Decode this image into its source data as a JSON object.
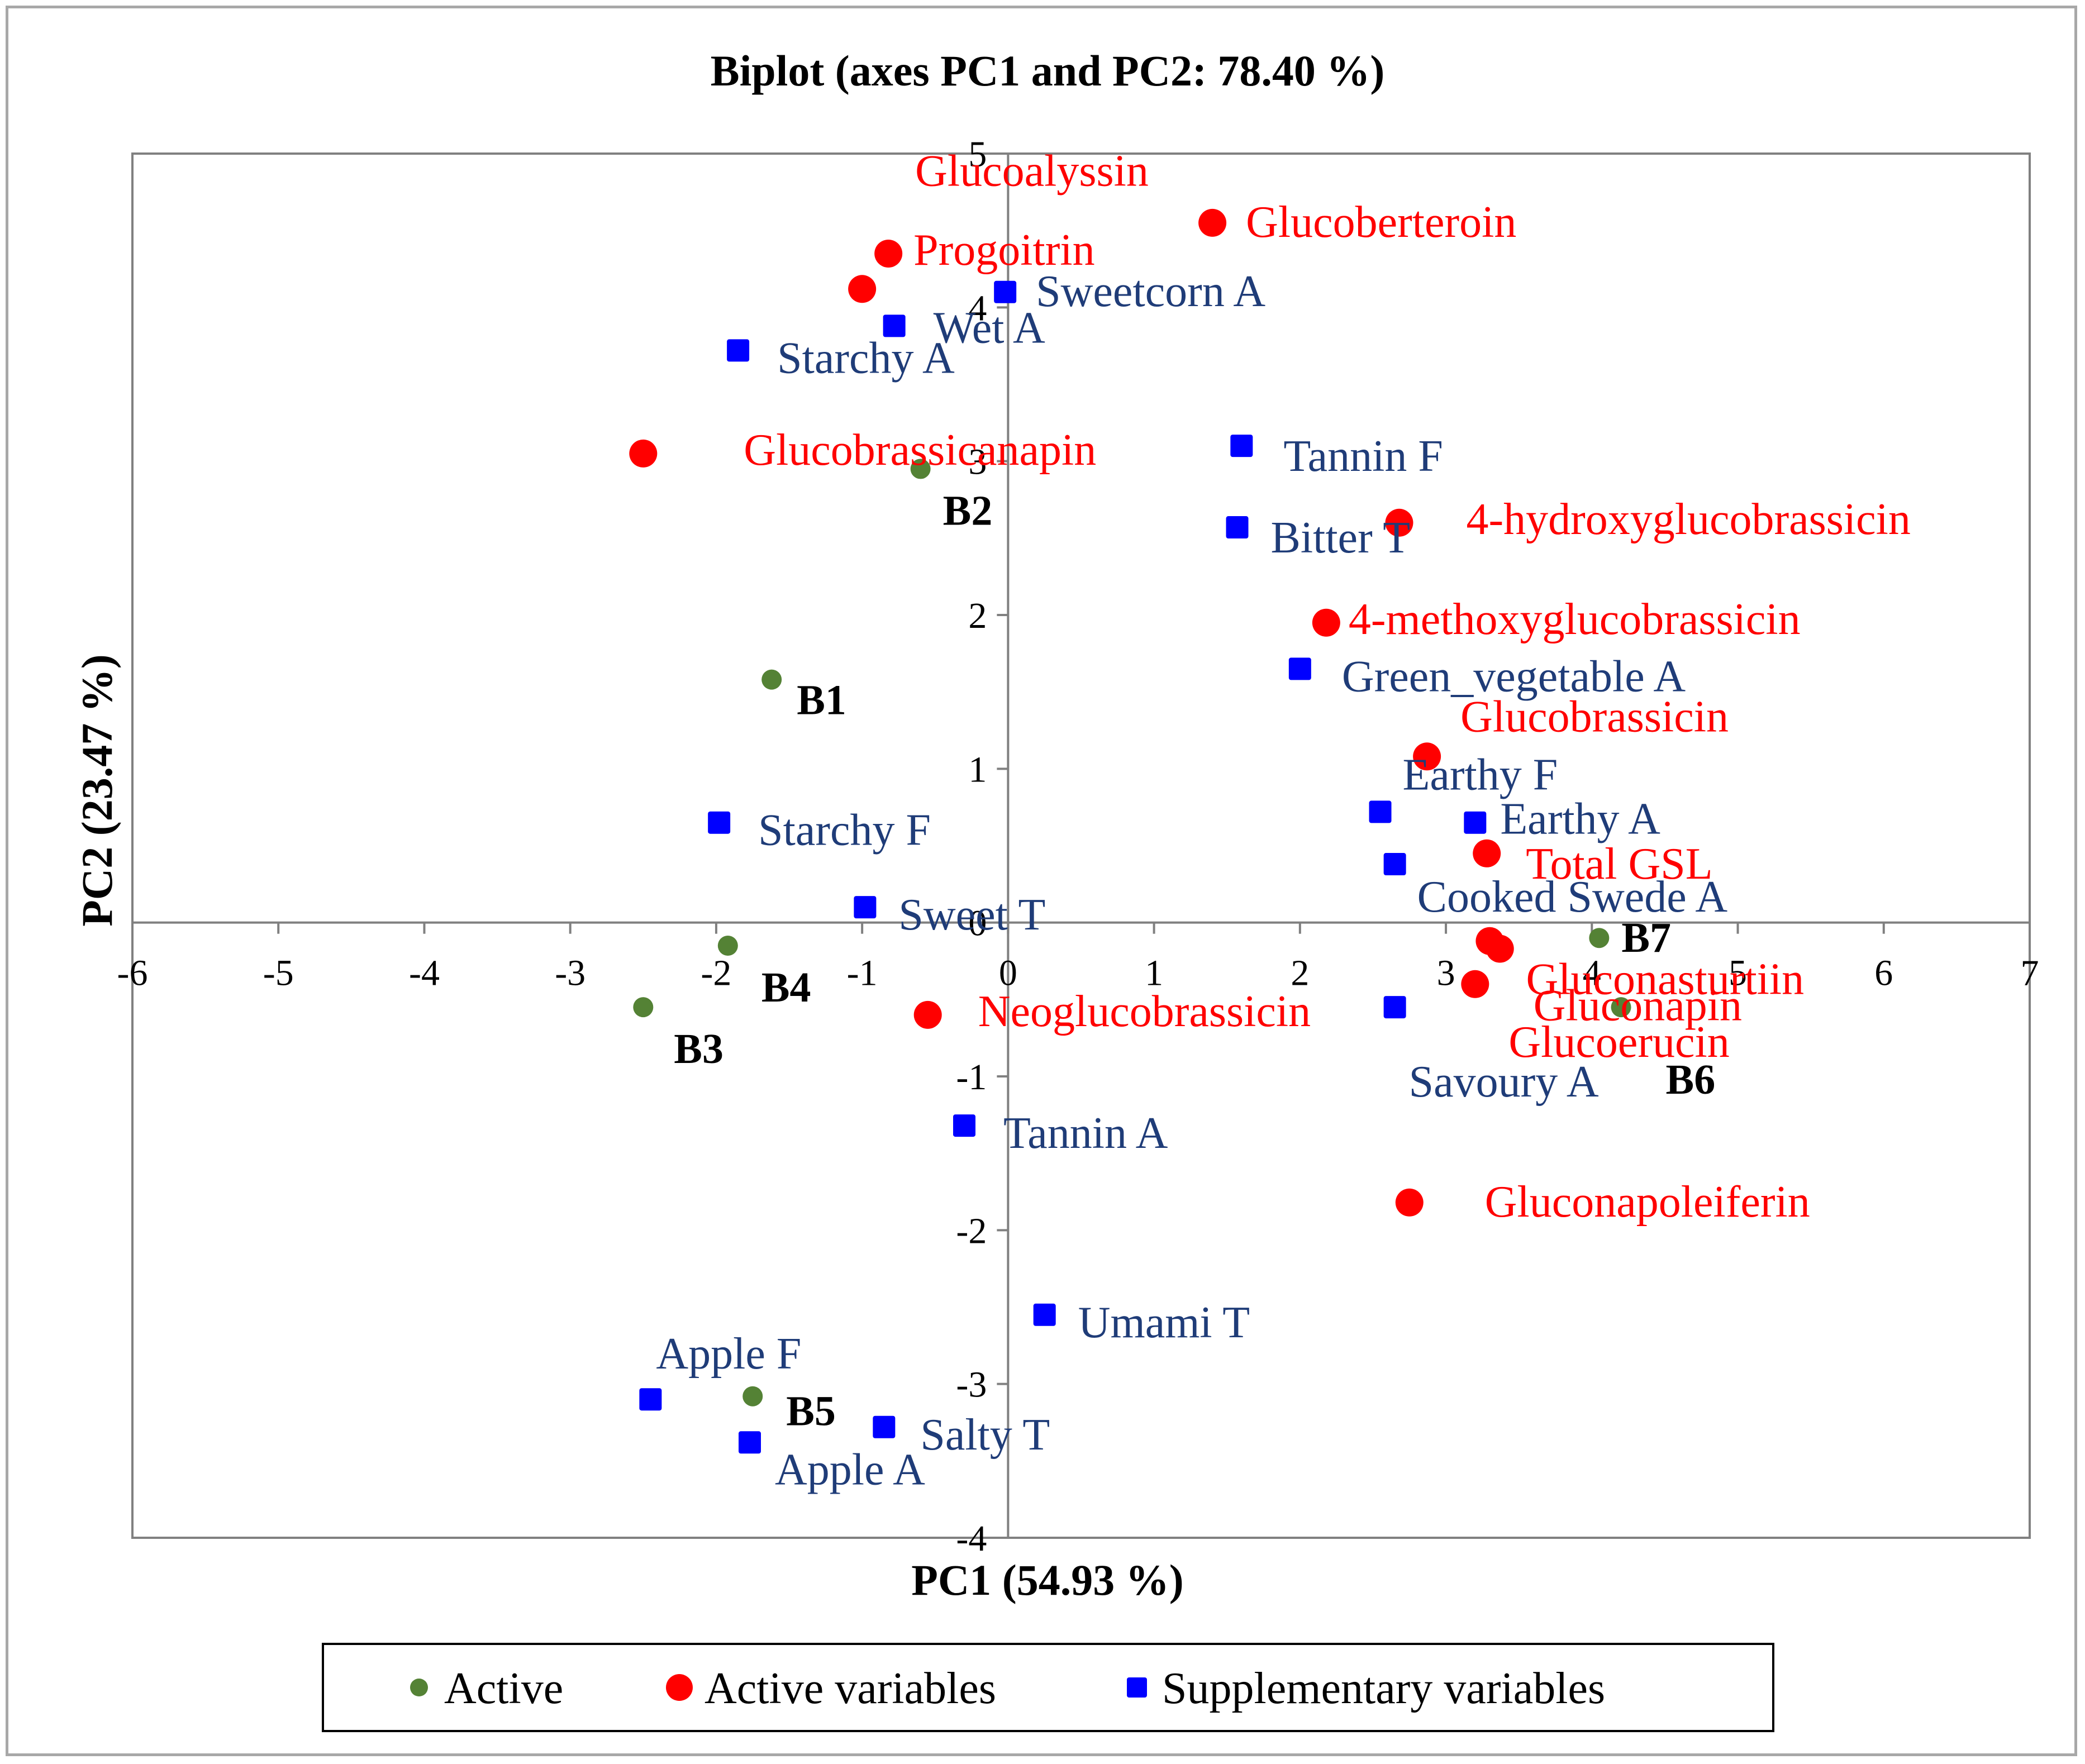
{
  "chart_data": {
    "type": "scatter",
    "title": "Biplot (axes PC1 and PC2: 78.40 %)",
    "xlabel": "PC1 (54.93 %)",
    "ylabel": "PC2 (23.47 %)",
    "xlim": [
      -6,
      7
    ],
    "ylim": [
      -4,
      5
    ],
    "xticks": [
      -6,
      -5,
      -4,
      -3,
      -2,
      -1,
      0,
      1,
      2,
      3,
      4,
      5,
      6,
      7
    ],
    "yticks": [
      -4,
      -3,
      -2,
      -1,
      0,
      1,
      2,
      3,
      4,
      5
    ],
    "colors": {
      "active": "#548235",
      "active_variables": "#ff0000",
      "supplementary_variables": "#0000ff",
      "active_label": "#000000",
      "active_variables_label": "#ff0000",
      "supplementary_variables_label": "#1f3c78"
    },
    "legend": [
      {
        "key": "active",
        "label": "Active"
      },
      {
        "key": "active_variables",
        "label": "Active variables"
      },
      {
        "key": "supplementary_variables",
        "label": "Supplementary variables"
      }
    ],
    "series": [
      {
        "key": "active",
        "name": "Active",
        "points": [
          {
            "label": "B1",
            "x": -1.62,
            "y": 1.58
          },
          {
            "label": "B2",
            "x": -0.6,
            "y": 2.95
          },
          {
            "label": "B3",
            "x": -2.5,
            "y": -0.55
          },
          {
            "label": "B4",
            "x": -1.92,
            "y": -0.15
          },
          {
            "label": "B5",
            "x": -1.75,
            "y": -3.08
          },
          {
            "label": "B6",
            "x": 4.2,
            "y": -0.55
          },
          {
            "label": "B7",
            "x": 4.05,
            "y": -0.1
          }
        ]
      },
      {
        "key": "active_variables",
        "name": "Active variables",
        "points": [
          {
            "label": "Glucoalyssin",
            "x": -1.0,
            "y": 4.12
          },
          {
            "label": "Progoitrin",
            "x": -0.82,
            "y": 4.35
          },
          {
            "label": "Glucoberteroin",
            "x": 1.4,
            "y": 4.55
          },
          {
            "label": "Glucobrassicanapin",
            "x": -2.5,
            "y": 3.05
          },
          {
            "label": "4-hydroxyglucobrassicin",
            "x": 2.68,
            "y": 2.6
          },
          {
            "label": "4-methoxyglucobrassicin",
            "x": 2.18,
            "y": 1.95
          },
          {
            "label": "Glucobrassicin",
            "x": 2.87,
            "y": 1.08
          },
          {
            "label": "Total GSL",
            "x": 3.28,
            "y": 0.45
          },
          {
            "label": "Gluconasturtiin",
            "x": 3.3,
            "y": -0.12
          },
          {
            "label": "Gluconapin",
            "x": 3.37,
            "y": -0.17
          },
          {
            "label": "Glucoerucin",
            "x": 3.2,
            "y": -0.4
          },
          {
            "label": "Neoglucobrassicin",
            "x": -0.55,
            "y": -0.6
          },
          {
            "label": "Gluconapoleiferin",
            "x": 2.75,
            "y": -1.82
          }
        ]
      },
      {
        "key": "supplementary_variables",
        "name": "Supplementary variables",
        "points": [
          {
            "label": "Sweetcorn A",
            "x": -0.02,
            "y": 4.1
          },
          {
            "label": "Wet A",
            "x": -0.78,
            "y": 3.88
          },
          {
            "label": "Starchy A",
            "x": -1.85,
            "y": 3.72
          },
          {
            "label": "Tannin F",
            "x": 1.6,
            "y": 3.1
          },
          {
            "label": "Bitter T",
            "x": 1.57,
            "y": 2.57
          },
          {
            "label": "Green_vegetable A",
            "x": 2.0,
            "y": 1.65
          },
          {
            "label": "Earthy F",
            "x": 2.55,
            "y": 0.72
          },
          {
            "label": "Earthy A",
            "x": 3.2,
            "y": 0.65
          },
          {
            "label": "Cooked Swede A",
            "x": 2.65,
            "y": 0.38
          },
          {
            "label": "Starchy F",
            "x": -1.98,
            "y": 0.65
          },
          {
            "label": "Sweet T",
            "x": -0.98,
            "y": 0.1
          },
          {
            "label": "Savoury A",
            "x": 2.65,
            "y": -0.55
          },
          {
            "label": "Tannin A",
            "x": -0.3,
            "y": -1.32
          },
          {
            "label": "Umami  T",
            "x": 0.25,
            "y": -2.55
          },
          {
            "label": "Apple F",
            "x": -2.45,
            "y": -3.1
          },
          {
            "label": "Salty T",
            "x": -0.85,
            "y": -3.28
          },
          {
            "label": "Apple A",
            "x": -1.77,
            "y": -3.38
          }
        ]
      }
    ]
  }
}
